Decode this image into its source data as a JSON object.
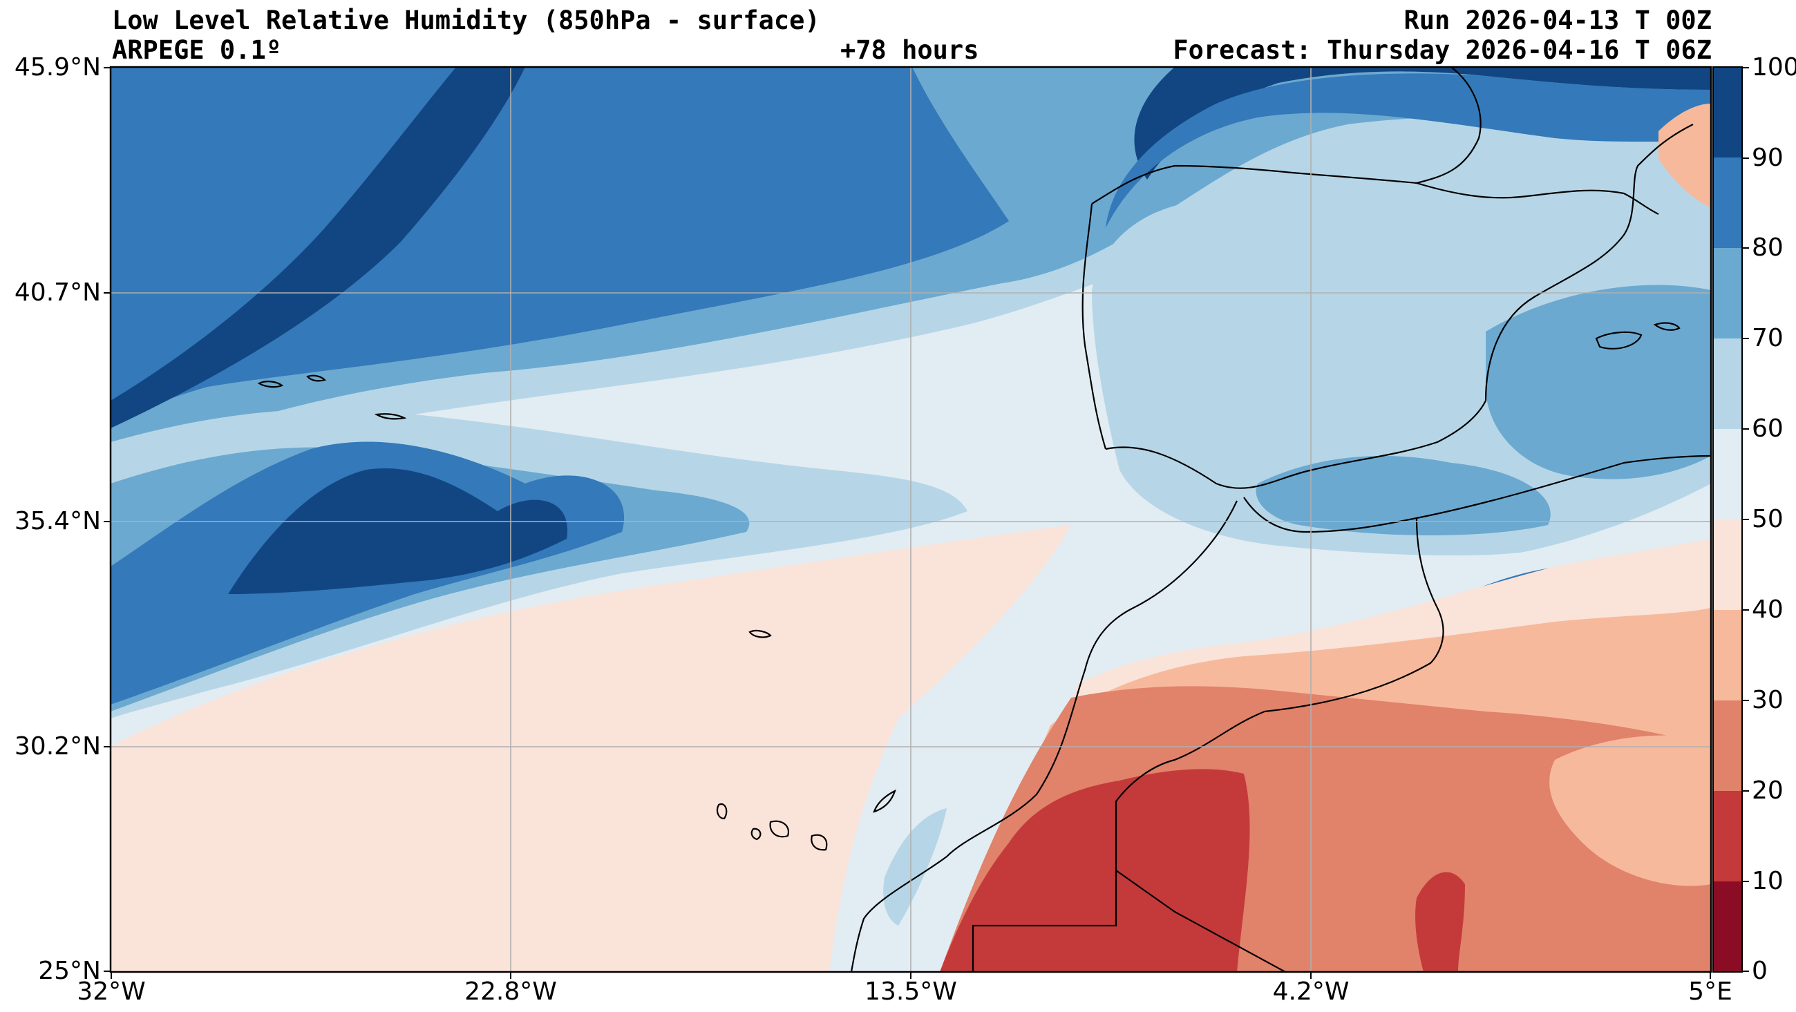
{
  "title": {
    "left_line1": "Low Level Relative Humidity (850hPa - surface)",
    "left_line2": "ARPEGE 0.1º",
    "center_line2": "+78 hours",
    "right_line1": "Run 2026-04-13 T 00Z",
    "right_line2": "Forecast: Thursday 2026-04-16 T 06Z"
  },
  "axes": {
    "lat_ticks": [
      "45.9°N",
      "40.7°N",
      "35.4°N",
      "30.2°N",
      "25°N"
    ],
    "lon_ticks": [
      "32°W",
      "22.8°W",
      "13.5°W",
      "4.2°W",
      "5°E"
    ],
    "lat_range": [
      25,
      45.9
    ],
    "lon_range": [
      -32,
      5
    ]
  },
  "colorbar": {
    "ticks": [
      "100",
      "90",
      "80",
      "70",
      "60",
      "50",
      "40",
      "30",
      "20",
      "10",
      "0"
    ],
    "levels": [
      0,
      10,
      20,
      30,
      40,
      50,
      60,
      70,
      80,
      90,
      100
    ],
    "colors": [
      "#8a0c25",
      "#c43a3a",
      "#e1826b",
      "#f7b99c",
      "#fae3d9",
      "#e2ecf3",
      "#b6d6e7",
      "#6ca9d0",
      "#3479b9",
      "#124683"
    ]
  },
  "colors": {
    "land_dry_red": "#c43a3a",
    "land_orange": "#e1826b",
    "salmon": "#f7b99c",
    "peach": "#fae3d9",
    "pale_blue": "#e2ecf3",
    "light_blue": "#b6d6e7",
    "mid_blue": "#6ca9d0",
    "blue": "#3479b9",
    "dark_blue": "#124683"
  }
}
